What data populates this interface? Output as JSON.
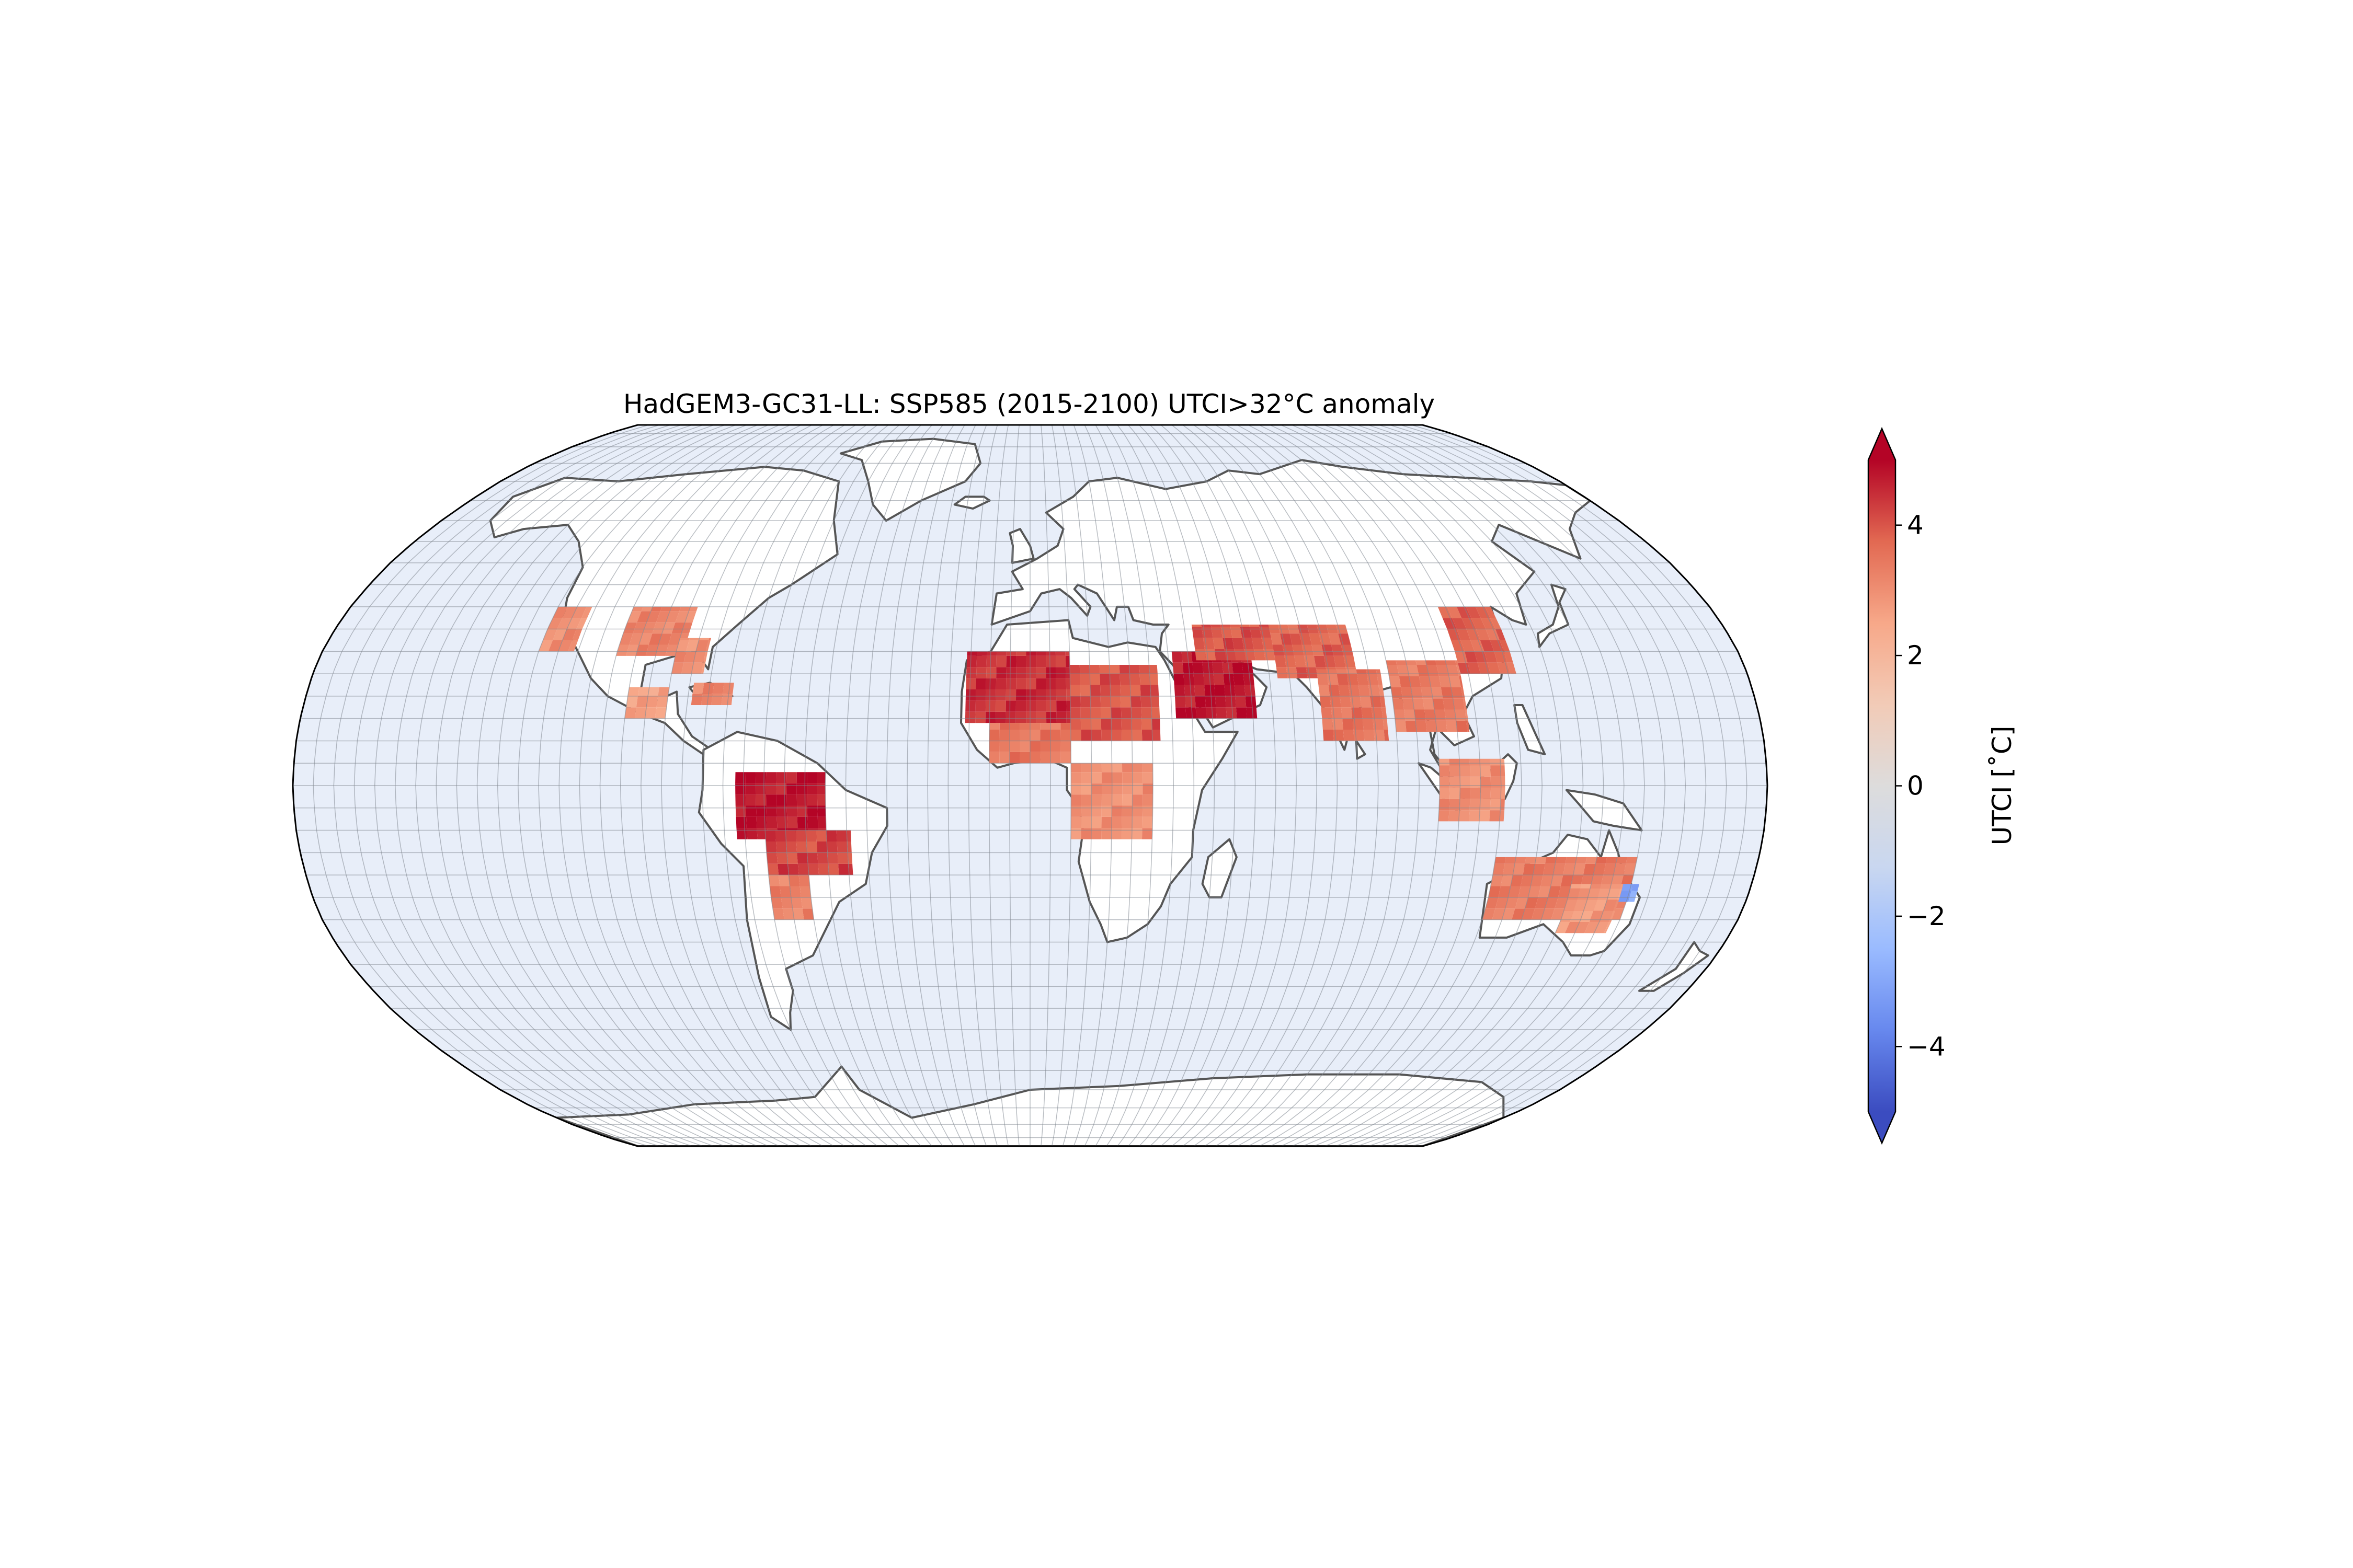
{
  "figure": {
    "title": "HadGEM3-GC31-LL: SSP585 (2015-2100) UTCI>32°C anomaly",
    "projection": "Robinson",
    "ocean_color": "#e8eef9",
    "land_color": "#ffffff",
    "coastline_color": "#555555",
    "gridline_color": "#7f8690"
  },
  "colorbar": {
    "label": "UTCI [˚C]",
    "colormap": "coolwarm",
    "vmin": -5,
    "vmax": 5,
    "extend": "both",
    "ticks": [
      {
        "value": 4,
        "label": "4"
      },
      {
        "value": 2,
        "label": "2"
      },
      {
        "value": 0,
        "label": "0"
      },
      {
        "value": -2,
        "label": "−2"
      },
      {
        "value": -4,
        "label": "−4"
      }
    ],
    "stops": [
      "#3b4cc0",
      "#6788ee",
      "#9abbff",
      "#c9d7f0",
      "#dddcdc",
      "#f2cbb7",
      "#f7a889",
      "#e26952",
      "#b40426"
    ]
  },
  "chart_data": {
    "type": "heatmap",
    "title": "HadGEM3-GC31-LL: SSP585 (2015-2100) UTCI>32°C anomaly",
    "variable": "UTCI [˚C]",
    "clim": [
      -5,
      5
    ],
    "regions": [
      {
        "lon": [
          -125,
          -116
        ],
        "lat": [
          30,
          40
        ],
        "value": 3.0
      },
      {
        "lon": [
          -105,
          -88
        ],
        "lat": [
          29,
          40
        ],
        "value": 3.2
      },
      {
        "lon": [
          -90,
          -82
        ],
        "lat": [
          25,
          33
        ],
        "value": 3.0
      },
      {
        "lon": [
          -84,
          -74
        ],
        "lat": [
          18,
          23
        ],
        "value": 3.2
      },
      {
        "lon": [
          -100,
          -90
        ],
        "lat": [
          15,
          22
        ],
        "value": 2.6
      },
      {
        "lon": [
          -72,
          -50
        ],
        "lat": [
          -12,
          3
        ],
        "value": 4.8
      },
      {
        "lon": [
          -65,
          -44
        ],
        "lat": [
          -20,
          -10
        ],
        "value": 4.2
      },
      {
        "lon": [
          -65,
          -55
        ],
        "lat": [
          -30,
          -20
        ],
        "value": 3.3
      },
      {
        "lon": [
          -16,
          10
        ],
        "lat": [
          14,
          30
        ],
        "value": 4.5
      },
      {
        "lon": [
          10,
          32
        ],
        "lat": [
          10,
          27
        ],
        "value": 4.0
      },
      {
        "lon": [
          -10,
          10
        ],
        "lat": [
          5,
          14
        ],
        "value": 3.5
      },
      {
        "lon": [
          10,
          30
        ],
        "lat": [
          -12,
          5
        ],
        "value": 3.0
      },
      {
        "lon": [
          36,
          56
        ],
        "lat": [
          15,
          30
        ],
        "value": 4.8
      },
      {
        "lon": [
          42,
          62
        ],
        "lat": [
          28,
          36
        ],
        "value": 4.0
      },
      {
        "lon": [
          62,
          82
        ],
        "lat": [
          24,
          36
        ],
        "value": 3.8
      },
      {
        "lon": [
          72,
          88
        ],
        "lat": [
          10,
          26
        ],
        "value": 3.5
      },
      {
        "lon": [
          90,
          108
        ],
        "lat": [
          12,
          28
        ],
        "value": 3.4
      },
      {
        "lon": [
          108,
          122
        ],
        "lat": [
          25,
          40
        ],
        "value": 3.8
      },
      {
        "lon": [
          100,
          116
        ],
        "lat": [
          -8,
          6
        ],
        "value": 3.0
      },
      {
        "lon": [
          115,
          150
        ],
        "lat": [
          -30,
          -16
        ],
        "value": 3.4
      },
      {
        "lon": [
          135,
          148
        ],
        "lat": [
          -33,
          -22
        ],
        "value": 2.8
      },
      {
        "lon": [
          148,
          152
        ],
        "lat": [
          -26,
          -22
        ],
        "value": -3.0
      }
    ]
  }
}
